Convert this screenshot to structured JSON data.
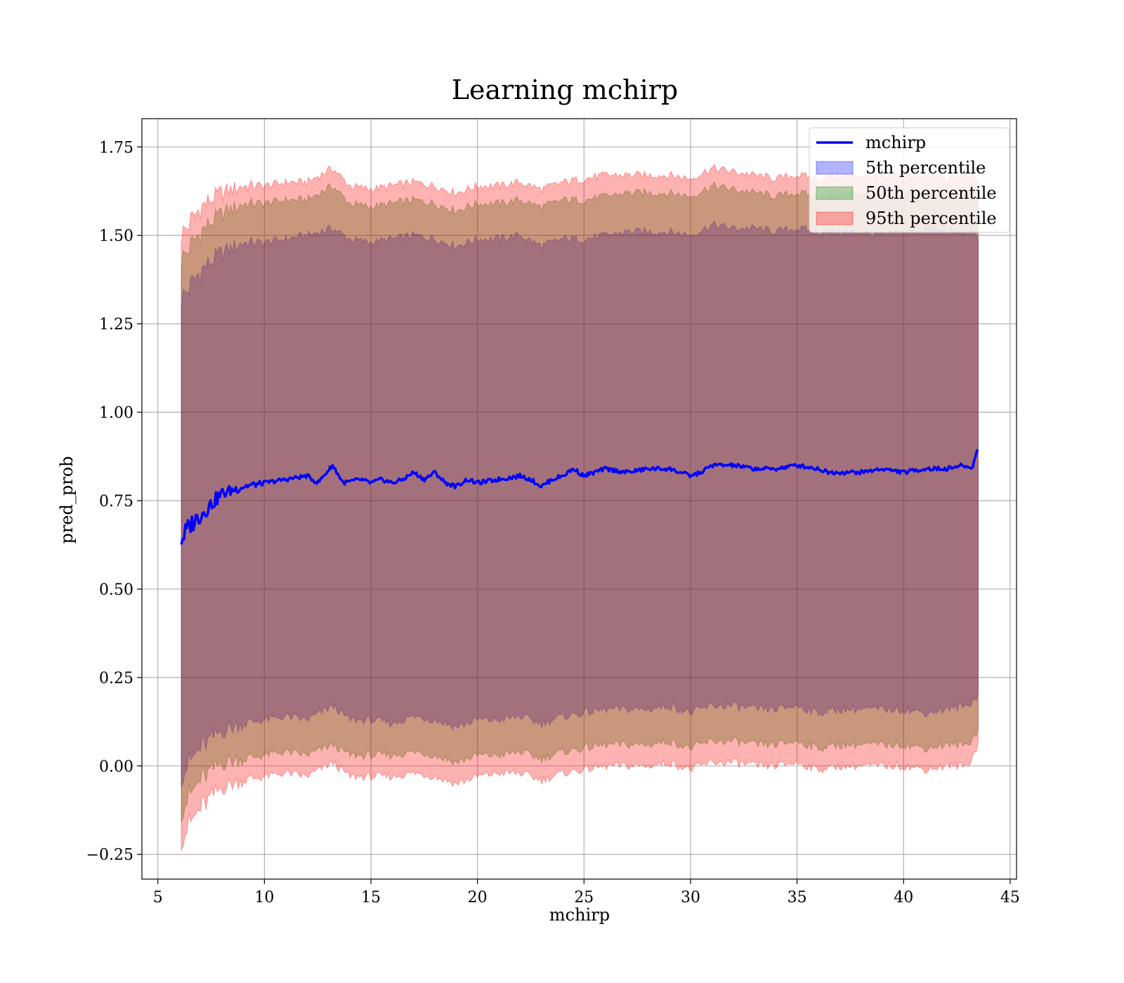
{
  "chart_data": {
    "type": "area",
    "title": "Learning mchirp",
    "xlabel": "mchirp",
    "ylabel": "pred_prob",
    "xlim": [
      4.25,
      45.3
    ],
    "ylim": [
      -0.32,
      1.83
    ],
    "xticks": [
      5,
      10,
      15,
      20,
      25,
      30,
      35,
      40,
      45
    ],
    "yticks": [
      -0.25,
      0.0,
      0.25,
      0.5,
      0.75,
      1.0,
      1.25,
      1.5,
      1.75
    ],
    "xtick_labels": [
      "5",
      "10",
      "15",
      "20",
      "25",
      "30",
      "35",
      "40",
      "45"
    ],
    "ytick_labels": [
      "−0.25",
      "0.00",
      "0.25",
      "0.50",
      "0.75",
      "1.00",
      "1.25",
      "1.50",
      "1.75"
    ],
    "grid": true,
    "legend_position": "top-right",
    "legend": [
      "mchirp",
      "5th percentile",
      "50th percentile",
      "95th percentile"
    ],
    "colors": {
      "line": "#0000ff",
      "band_5th": "#0000ff",
      "band_50th": "#008000",
      "band_95th": "#ff0000"
    },
    "series": [
      {
        "name": "mchirp",
        "kind": "line",
        "x": [
          6.1,
          6.5,
          7.0,
          7.5,
          8.0,
          8.5,
          9.0,
          10.0,
          11.0,
          12.0,
          12.5,
          13.2,
          13.7,
          14.5,
          15.0,
          15.5,
          16.0,
          16.5,
          17.0,
          17.5,
          18.0,
          18.5,
          19.0,
          19.5,
          20.0,
          21.0,
          22.0,
          22.5,
          23.0,
          23.5,
          24.0,
          24.5,
          25.0,
          26.0,
          27.0,
          28.0,
          29.0,
          30.0,
          30.5,
          31.0,
          32.0,
          33.0,
          34.0,
          35.0,
          36.0,
          36.5,
          37.0,
          38.0,
          39.0,
          40.0,
          41.0,
          42.0,
          42.8,
          43.2,
          43.5
        ],
        "y": [
          0.64,
          0.68,
          0.71,
          0.74,
          0.77,
          0.78,
          0.79,
          0.8,
          0.81,
          0.82,
          0.8,
          0.85,
          0.8,
          0.81,
          0.8,
          0.81,
          0.8,
          0.81,
          0.83,
          0.81,
          0.83,
          0.8,
          0.79,
          0.81,
          0.8,
          0.81,
          0.82,
          0.81,
          0.79,
          0.81,
          0.82,
          0.84,
          0.82,
          0.84,
          0.83,
          0.84,
          0.84,
          0.82,
          0.83,
          0.85,
          0.85,
          0.84,
          0.84,
          0.85,
          0.84,
          0.83,
          0.83,
          0.83,
          0.84,
          0.83,
          0.84,
          0.84,
          0.85,
          0.84,
          0.9
        ]
      },
      {
        "name": "5th percentile",
        "kind": "band",
        "x": [
          6.1,
          7.0,
          8.0,
          9.0,
          10.0,
          11.0,
          12.0,
          13.2,
          14.0,
          15.0,
          16.0,
          17.0,
          18.0,
          19.0,
          20.0,
          21.0,
          22.0,
          23.0,
          24.0,
          25.0,
          26.0,
          27.0,
          28.0,
          29.0,
          30.0,
          31.0,
          32.0,
          33.0,
          34.0,
          35.0,
          36.0,
          37.0,
          38.0,
          39.0,
          40.0,
          41.0,
          42.0,
          43.0,
          43.5
        ],
        "lower": [
          -0.02,
          0.05,
          0.1,
          0.12,
          0.13,
          0.14,
          0.13,
          0.17,
          0.13,
          0.13,
          0.12,
          0.14,
          0.13,
          0.11,
          0.13,
          0.13,
          0.14,
          0.12,
          0.14,
          0.15,
          0.16,
          0.16,
          0.16,
          0.17,
          0.15,
          0.17,
          0.17,
          0.16,
          0.16,
          0.17,
          0.15,
          0.16,
          0.16,
          0.16,
          0.16,
          0.15,
          0.16,
          0.17,
          0.2
        ],
        "upper": [
          1.32,
          1.4,
          1.45,
          1.48,
          1.48,
          1.49,
          1.5,
          1.52,
          1.49,
          1.48,
          1.49,
          1.5,
          1.49,
          1.47,
          1.49,
          1.49,
          1.5,
          1.47,
          1.49,
          1.49,
          1.5,
          1.51,
          1.51,
          1.51,
          1.5,
          1.53,
          1.52,
          1.52,
          1.51,
          1.52,
          1.51,
          1.51,
          1.51,
          1.5,
          1.51,
          1.52,
          1.51,
          1.51,
          1.5
        ]
      },
      {
        "name": "50th percentile",
        "kind": "band",
        "x": [
          6.1,
          7.0,
          8.0,
          9.0,
          10.0,
          11.0,
          12.0,
          13.2,
          14.0,
          15.0,
          16.0,
          17.0,
          18.0,
          19.0,
          20.0,
          21.0,
          22.0,
          23.0,
          24.0,
          25.0,
          26.0,
          27.0,
          28.0,
          29.0,
          30.0,
          31.0,
          32.0,
          33.0,
          34.0,
          35.0,
          36.0,
          37.0,
          38.0,
          39.0,
          40.0,
          41.0,
          42.0,
          43.0,
          43.5
        ],
        "lower": [
          -0.12,
          -0.04,
          0.01,
          0.02,
          0.03,
          0.04,
          0.03,
          0.06,
          0.03,
          0.03,
          0.03,
          0.04,
          0.03,
          0.01,
          0.03,
          0.03,
          0.04,
          0.02,
          0.04,
          0.05,
          0.06,
          0.06,
          0.06,
          0.07,
          0.05,
          0.07,
          0.07,
          0.06,
          0.06,
          0.07,
          0.05,
          0.06,
          0.06,
          0.06,
          0.06,
          0.05,
          0.06,
          0.06,
          0.1
        ],
        "upper": [
          1.43,
          1.51,
          1.56,
          1.59,
          1.59,
          1.6,
          1.6,
          1.64,
          1.59,
          1.58,
          1.59,
          1.6,
          1.59,
          1.57,
          1.59,
          1.59,
          1.6,
          1.58,
          1.6,
          1.6,
          1.61,
          1.62,
          1.62,
          1.62,
          1.61,
          1.64,
          1.63,
          1.62,
          1.61,
          1.62,
          1.61,
          1.62,
          1.62,
          1.61,
          1.62,
          1.62,
          1.61,
          1.62,
          1.61
        ]
      },
      {
        "name": "95th percentile",
        "kind": "band",
        "x": [
          6.1,
          7.0,
          8.0,
          9.0,
          10.0,
          11.0,
          12.0,
          13.2,
          14.0,
          15.0,
          16.0,
          17.0,
          18.0,
          19.0,
          20.0,
          21.0,
          22.0,
          23.0,
          24.0,
          25.0,
          26.0,
          27.0,
          28.0,
          29.0,
          30.0,
          31.0,
          32.0,
          33.0,
          34.0,
          35.0,
          36.0,
          37.0,
          38.0,
          39.0,
          40.0,
          41.0,
          42.0,
          43.0,
          43.5
        ],
        "lower": [
          -0.2,
          -0.12,
          -0.06,
          -0.04,
          -0.03,
          -0.02,
          -0.03,
          0.01,
          -0.03,
          -0.03,
          -0.03,
          -0.02,
          -0.03,
          -0.05,
          -0.03,
          -0.02,
          -0.02,
          -0.04,
          -0.02,
          -0.01,
          0.0,
          0.0,
          0.0,
          0.01,
          -0.01,
          0.01,
          0.01,
          0.0,
          0.0,
          0.01,
          -0.01,
          0.0,
          0.0,
          0.0,
          0.0,
          -0.01,
          0.0,
          0.0,
          0.06
        ],
        "upper": [
          1.5,
          1.58,
          1.62,
          1.64,
          1.64,
          1.65,
          1.65,
          1.69,
          1.64,
          1.63,
          1.64,
          1.65,
          1.64,
          1.62,
          1.64,
          1.64,
          1.65,
          1.63,
          1.65,
          1.66,
          1.67,
          1.67,
          1.67,
          1.67,
          1.66,
          1.69,
          1.68,
          1.67,
          1.66,
          1.67,
          1.66,
          1.67,
          1.67,
          1.66,
          1.67,
          1.67,
          1.66,
          1.67,
          1.66
        ]
      }
    ]
  }
}
